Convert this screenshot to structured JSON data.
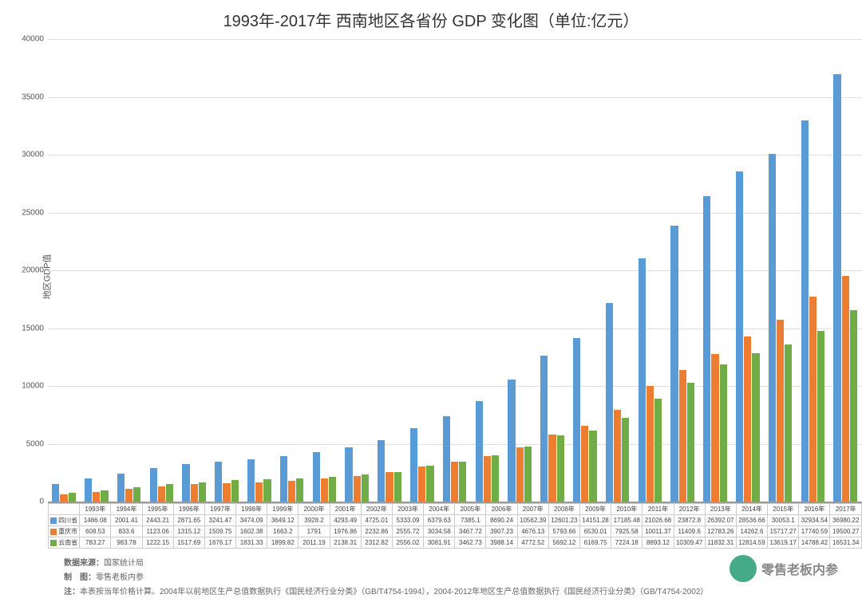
{
  "title": "1993年-2017年 西南地区各省份 GDP 变化图（单位:亿元）",
  "ylabel": "地区GDP值",
  "chart": {
    "type": "bar",
    "ylim": [
      0,
      40000
    ],
    "ytick_step": 5000,
    "grid_color": "#e0e0e0",
    "background_color": "#ffffff",
    "tick_fontsize": 10,
    "group_gap": 0.25,
    "bar_gap": 0.02
  },
  "categories": [
    "1993年",
    "1994年",
    "1995年",
    "1996年",
    "1997年",
    "1998年",
    "1999年",
    "2000年",
    "2001年",
    "2002年",
    "2003年",
    "2004年",
    "2005年",
    "2006年",
    "2007年",
    "2008年",
    "2009年",
    "2010年",
    "2011年",
    "2012年",
    "2013年",
    "2014年",
    "2015年",
    "2016年",
    "2017年"
  ],
  "series": [
    {
      "name": "四川省",
      "color": "#5b9bd5",
      "values": [
        1486.08,
        2001.41,
        2443.21,
        2871.65,
        3241.47,
        3474.09,
        3649.12,
        3928.2,
        4293.49,
        4725.01,
        5333.09,
        6379.63,
        7385.1,
        8690.24,
        10562.39,
        12601.23,
        14151.28,
        17185.48,
        21026.68,
        23872.8,
        26392.07,
        28536.66,
        30053.1,
        32934.54,
        36980.22
      ]
    },
    {
      "name": "重庆市",
      "color": "#ed7d31",
      "values": [
        608.53,
        833.6,
        1123.06,
        1315.12,
        1509.75,
        1602.38,
        1663.2,
        1791,
        1976.86,
        2232.86,
        2555.72,
        3034.58,
        3467.72,
        3907.23,
        4676.13,
        5793.66,
        6530.01,
        7925.58,
        10011.37,
        11409.6,
        12783.26,
        14262.6,
        15717.27,
        17740.59,
        19500.27
      ]
    },
    {
      "name": "云南省",
      "color": "#70ad47",
      "values": [
        783.27,
        983.78,
        1222.15,
        1517.69,
        1676.17,
        1831.33,
        1899.82,
        2011.19,
        2138.31,
        2312.82,
        2556.02,
        3081.91,
        3462.73,
        3988.14,
        4772.52,
        5692.12,
        6169.75,
        7224.18,
        8893.12,
        10309.47,
        11832.31,
        12814.59,
        13619.17,
        14788.42,
        16531.34
      ]
    }
  ],
  "table_header_first": "",
  "footnotes": {
    "source_label": "数据来源：",
    "source_value": "国家统计局",
    "maker_label": "制　图：",
    "maker_value": "零售老板内参",
    "note_label": "注：",
    "note_value": "本表按当年价格计算。2004年以前地区生产总值数据执行《国民经济行业分类》（GB/T4754-1994），2004-2012年地区生产总值数据执行《国民经济行业分类》（GB/T4754-2002）"
  },
  "watermark": "零售老板内参"
}
